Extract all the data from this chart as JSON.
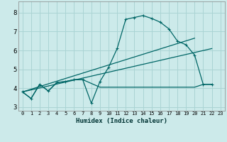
{
  "xlabel": "Humidex (Indice chaleur)",
  "bg_color": "#cceaea",
  "grid_color": "#aad4d4",
  "line_color": "#006666",
  "xlim": [
    -0.5,
    23.5
  ],
  "ylim": [
    2.8,
    8.6
  ],
  "xticks": [
    0,
    1,
    2,
    3,
    4,
    5,
    6,
    7,
    8,
    9,
    10,
    11,
    12,
    13,
    14,
    15,
    16,
    17,
    18,
    19,
    20,
    21,
    22,
    23
  ],
  "yticks": [
    3,
    4,
    5,
    6,
    7,
    8
  ],
  "series": [
    {
      "x": [
        0,
        1,
        2,
        3,
        4,
        5,
        6,
        7,
        8,
        9,
        10,
        11,
        12,
        13,
        14,
        15,
        16,
        17,
        18,
        19,
        20,
        21,
        22
      ],
      "y": [
        3.8,
        3.45,
        4.2,
        3.85,
        4.3,
        4.35,
        4.45,
        4.45,
        4.25,
        4.05,
        4.05,
        4.05,
        4.05,
        4.05,
        4.05,
        4.05,
        4.05,
        4.05,
        4.05,
        4.05,
        4.05,
        4.2,
        4.2
      ],
      "marker": false
    },
    {
      "x": [
        0,
        1,
        2,
        3,
        4,
        5,
        6,
        7,
        8,
        9,
        10,
        11,
        12,
        13,
        14,
        15,
        16,
        17,
        18,
        19,
        20,
        21,
        22
      ],
      "y": [
        3.8,
        3.45,
        4.2,
        3.85,
        4.3,
        4.35,
        4.45,
        4.45,
        3.2,
        4.35,
        5.1,
        6.1,
        7.65,
        7.75,
        7.85,
        7.7,
        7.5,
        7.15,
        6.5,
        6.3,
        5.75,
        4.2,
        4.2
      ],
      "marker": true
    },
    {
      "x": [
        0,
        20
      ],
      "y": [
        3.8,
        6.65
      ],
      "marker": false
    },
    {
      "x": [
        0,
        22
      ],
      "y": [
        3.8,
        6.1
      ],
      "marker": false
    }
  ]
}
